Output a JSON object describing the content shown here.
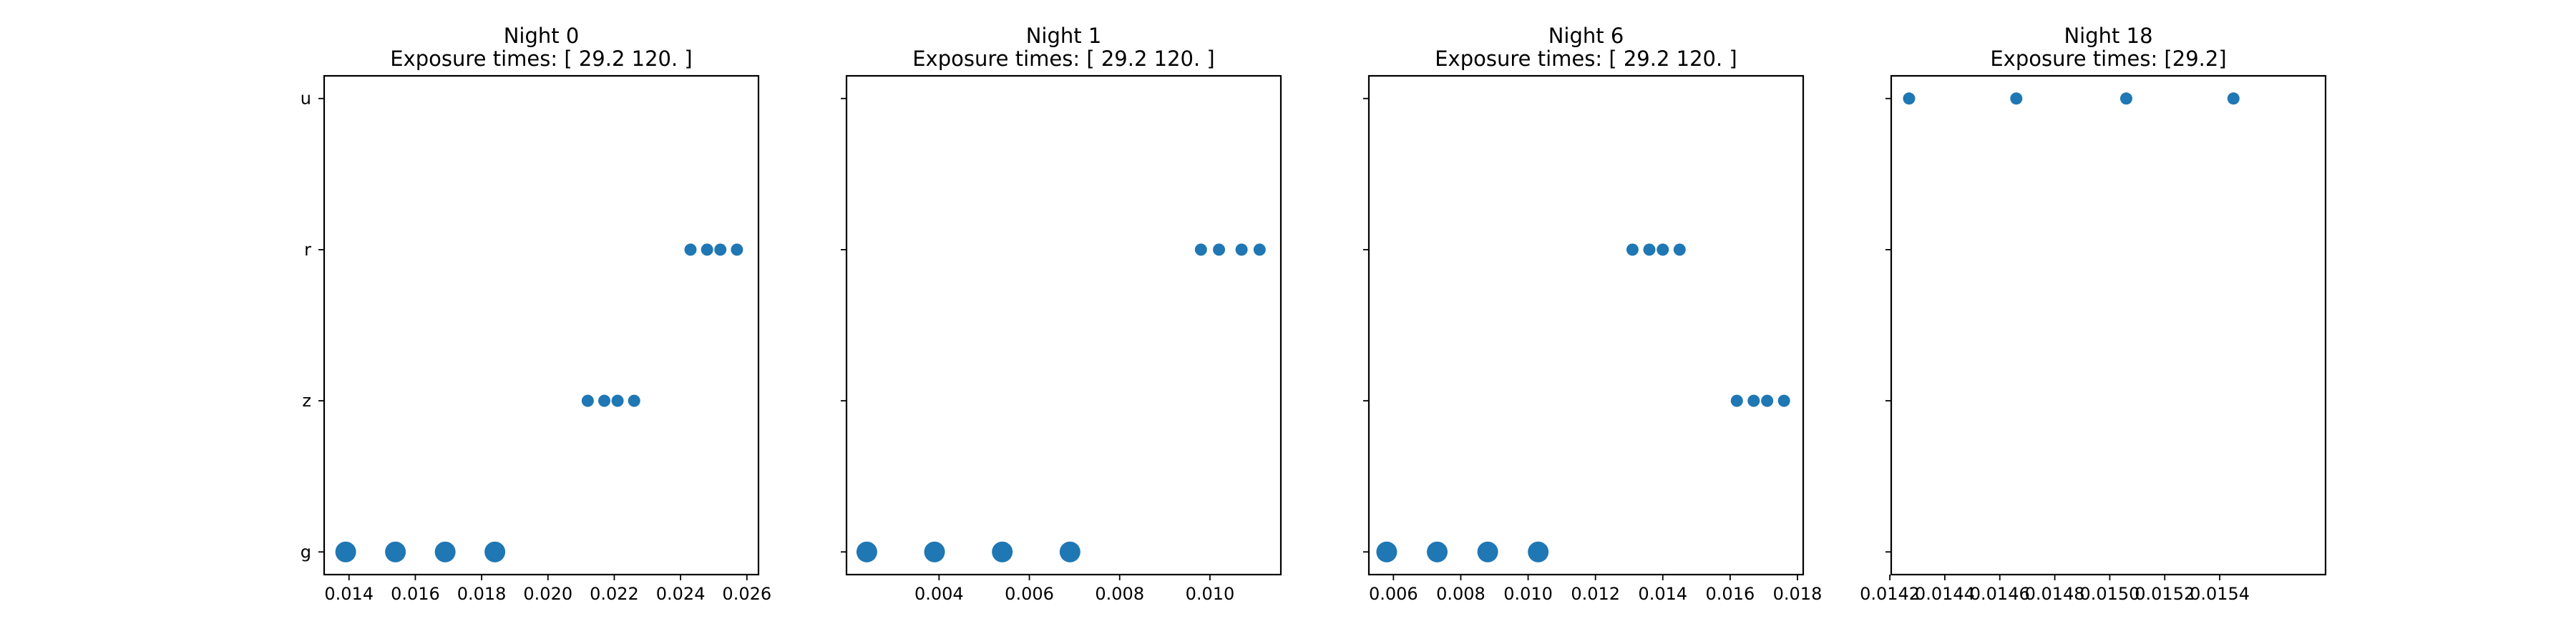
{
  "chart_data": [
    {
      "type": "scatter",
      "title": "Night 0",
      "subtitle": "Exposure times: [ 29.2 120. ]",
      "xlim": [
        0.01325,
        0.02635
      ],
      "xticks": [
        0.014,
        0.016,
        0.018,
        0.02,
        0.022,
        0.024,
        0.026
      ],
      "xtick_labels": [
        "0.014",
        "0.016",
        "0.018",
        "0.020",
        "0.022",
        "0.024",
        "0.026"
      ],
      "y_categories": [
        "g",
        "z",
        "r",
        "u"
      ],
      "show_ytick_labels": true,
      "color": "#1f77b4",
      "points": [
        {
          "x": 0.0139,
          "y": "g",
          "size": "large"
        },
        {
          "x": 0.0154,
          "y": "g",
          "size": "large"
        },
        {
          "x": 0.0169,
          "y": "g",
          "size": "large"
        },
        {
          "x": 0.0184,
          "y": "g",
          "size": "large"
        },
        {
          "x": 0.0212,
          "y": "z",
          "size": "small"
        },
        {
          "x": 0.0217,
          "y": "z",
          "size": "small"
        },
        {
          "x": 0.0221,
          "y": "z",
          "size": "small"
        },
        {
          "x": 0.0226,
          "y": "z",
          "size": "small"
        },
        {
          "x": 0.0243,
          "y": "r",
          "size": "small"
        },
        {
          "x": 0.0248,
          "y": "r",
          "size": "small"
        },
        {
          "x": 0.0252,
          "y": "r",
          "size": "small"
        },
        {
          "x": 0.0257,
          "y": "r",
          "size": "small"
        }
      ]
    },
    {
      "type": "scatter",
      "title": "Night 1",
      "subtitle": "Exposure times: [ 29.2 120. ]",
      "xlim": [
        0.00195,
        0.01157
      ],
      "xticks": [
        0.004,
        0.006,
        0.008,
        0.01
      ],
      "xtick_labels": [
        "0.004",
        "0.006",
        "0.008",
        "0.010"
      ],
      "y_categories": [
        "g",
        "z",
        "r",
        "u"
      ],
      "show_ytick_labels": false,
      "color": "#1f77b4",
      "points": [
        {
          "x": 0.0024,
          "y": "g",
          "size": "large"
        },
        {
          "x": 0.0039,
          "y": "g",
          "size": "large"
        },
        {
          "x": 0.0054,
          "y": "g",
          "size": "large"
        },
        {
          "x": 0.0069,
          "y": "g",
          "size": "large"
        },
        {
          "x": 0.0098,
          "y": "r",
          "size": "small"
        },
        {
          "x": 0.0102,
          "y": "r",
          "size": "small"
        },
        {
          "x": 0.0107,
          "y": "r",
          "size": "small"
        },
        {
          "x": 0.0111,
          "y": "r",
          "size": "small"
        }
      ]
    },
    {
      "type": "scatter",
      "title": "Night 6",
      "subtitle": "Exposure times: [ 29.2 120. ]",
      "xlim": [
        0.00527,
        0.01817
      ],
      "xticks": [
        0.006,
        0.008,
        0.01,
        0.012,
        0.014,
        0.016,
        0.018
      ],
      "xtick_labels": [
        "0.006",
        "0.008",
        "0.010",
        "0.012",
        "0.014",
        "0.016",
        "0.018"
      ],
      "y_categories": [
        "g",
        "z",
        "r",
        "u"
      ],
      "show_ytick_labels": false,
      "color": "#1f77b4",
      "points": [
        {
          "x": 0.0058,
          "y": "g",
          "size": "large"
        },
        {
          "x": 0.0073,
          "y": "g",
          "size": "large"
        },
        {
          "x": 0.0088,
          "y": "g",
          "size": "large"
        },
        {
          "x": 0.0103,
          "y": "g",
          "size": "large"
        },
        {
          "x": 0.0131,
          "y": "r",
          "size": "small"
        },
        {
          "x": 0.0136,
          "y": "r",
          "size": "small"
        },
        {
          "x": 0.014,
          "y": "r",
          "size": "small"
        },
        {
          "x": 0.0145,
          "y": "r",
          "size": "small"
        },
        {
          "x": 0.0162,
          "y": "z",
          "size": "small"
        },
        {
          "x": 0.0167,
          "y": "z",
          "size": "small"
        },
        {
          "x": 0.0171,
          "y": "z",
          "size": "small"
        },
        {
          "x": 0.0176,
          "y": "z",
          "size": "small"
        }
      ]
    },
    {
      "type": "scatter",
      "title": "Night 18",
      "subtitle": "Exposure times: [29.2]",
      "xlim": [
        0.014205,
        0.015785
      ],
      "xticks": [
        0.0142,
        0.0144,
        0.0146,
        0.0148,
        0.015,
        0.0152,
        0.0154
      ],
      "xtick_labels": [
        "0.0142",
        "0.0144",
        "0.0146",
        "0.0148",
        "0.0150",
        "0.0152",
        "0.0154"
      ],
      "y_categories": [
        "g",
        "z",
        "r",
        "u"
      ],
      "show_ytick_labels": false,
      "color": "#1f77b4",
      "points": [
        {
          "x": 0.01427,
          "y": "u",
          "size": "small"
        },
        {
          "x": 0.01466,
          "y": "u",
          "size": "small"
        },
        {
          "x": 0.01506,
          "y": "u",
          "size": "small"
        },
        {
          "x": 0.01545,
          "y": "u",
          "size": "small"
        }
      ]
    }
  ]
}
